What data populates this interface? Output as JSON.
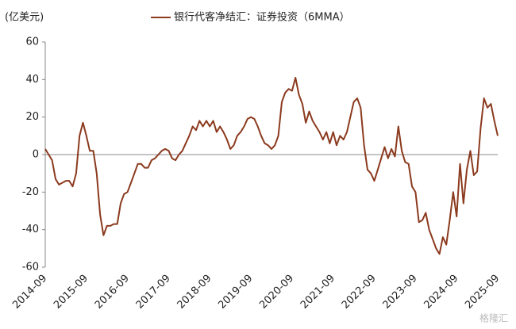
{
  "chart_data": {
    "type": "line",
    "title": "银行代客净结汇：证券投资（6MMA）",
    "y_unit": "(亿美元)",
    "watermark": "格隆汇",
    "categories": [
      "2014-09",
      null,
      null,
      null,
      null,
      null,
      null,
      null,
      null,
      null,
      null,
      null,
      "2015-09",
      null,
      null,
      null,
      null,
      null,
      null,
      null,
      null,
      null,
      null,
      null,
      "2016-09",
      null,
      null,
      null,
      null,
      null,
      null,
      null,
      null,
      null,
      null,
      null,
      "2017-09",
      null,
      null,
      null,
      null,
      null,
      null,
      null,
      null,
      null,
      null,
      null,
      "2018-09",
      null,
      null,
      null,
      null,
      null,
      null,
      null,
      null,
      null,
      null,
      null,
      "2019-09",
      null,
      null,
      null,
      null,
      null,
      null,
      null,
      null,
      null,
      null,
      null,
      "2020-09",
      null,
      null,
      null,
      null,
      null,
      null,
      null,
      null,
      null,
      null,
      null,
      "2021-09",
      null,
      null,
      null,
      null,
      null,
      null,
      null,
      null,
      null,
      null,
      null,
      "2022-09",
      null,
      null,
      null,
      null,
      null,
      null,
      null,
      null,
      null,
      null,
      null,
      "2023-09",
      null,
      null,
      null,
      null,
      null,
      null,
      null,
      null,
      null,
      null,
      null,
      "2024-09",
      null,
      null,
      null,
      null,
      null,
      null,
      null,
      null,
      null,
      null,
      null,
      "2025-09"
    ],
    "series": [
      {
        "name": "银行代客净结汇：证券投资（6MMA）",
        "color": "#8b3a1e",
        "values": [
          3,
          0,
          -3,
          -13,
          -16,
          -15,
          -14,
          -14,
          -17,
          -10,
          10,
          17,
          10,
          2,
          2,
          -10,
          -32,
          -43,
          -38,
          -38,
          -37,
          -37,
          -26,
          -21,
          -20,
          -15,
          -10,
          -5,
          -5,
          -7,
          -7,
          -3,
          -2,
          0,
          2,
          3,
          2,
          -2,
          -3,
          0,
          2,
          6,
          10,
          15,
          13,
          18,
          15,
          18,
          15,
          18,
          12,
          15,
          12,
          8,
          3,
          5,
          10,
          12,
          15,
          19,
          20,
          19,
          15,
          10,
          6,
          5,
          3,
          5,
          10,
          28,
          33,
          35,
          34,
          41,
          32,
          27,
          17,
          23,
          18,
          15,
          12,
          8,
          12,
          6,
          12,
          5,
          10,
          8,
          12,
          20,
          28,
          30,
          25,
          5,
          -8,
          -10,
          -14,
          -8,
          -2,
          4,
          -2,
          3,
          -1,
          15,
          2,
          -4,
          -5,
          -17,
          -20,
          -36,
          -35,
          -31,
          -40,
          -45,
          -50,
          -53,
          -44,
          -48,
          -35,
          -20,
          -33,
          -5,
          -26,
          -8,
          2,
          -11,
          -9,
          14,
          30,
          25,
          27,
          18,
          10
        ]
      }
    ],
    "ylim": [
      -60,
      60
    ],
    "yticks": [
      -60,
      -40,
      -20,
      0,
      20,
      40,
      60
    ]
  }
}
